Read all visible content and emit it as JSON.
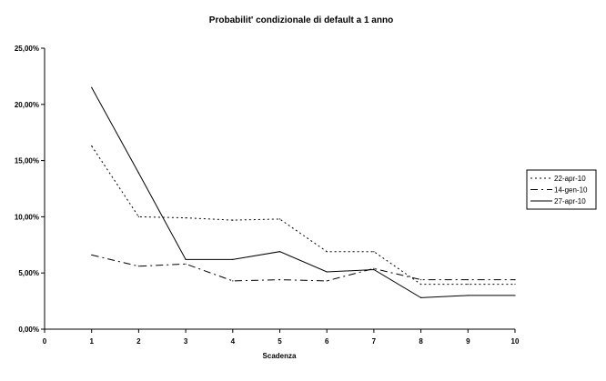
{
  "chart_data": {
    "type": "line",
    "title": "Probabilit' condizionale di default a 1 anno",
    "xlabel": "Scadenza",
    "ylabel": "",
    "xlim": [
      0,
      10
    ],
    "ylim": [
      0,
      25
    ],
    "x_ticks": [
      "0",
      "1",
      "2",
      "3",
      "4",
      "5",
      "6",
      "7",
      "8",
      "9",
      "10"
    ],
    "y_ticks": [
      "0,00%",
      "5,00%",
      "10,00%",
      "15,00%",
      "20,00%",
      "25,00%"
    ],
    "grid": false,
    "legend_position": "right",
    "series": [
      {
        "name": "22-apr-10",
        "style": "dotted",
        "x": [
          1,
          2,
          3,
          4,
          5,
          6,
          7,
          8,
          9,
          10
        ],
        "values": [
          16.3,
          10.0,
          9.9,
          9.7,
          9.8,
          6.9,
          6.9,
          4.0,
          4.0,
          4.0
        ]
      },
      {
        "name": "14-gen-10",
        "style": "dashdot",
        "x": [
          1,
          2,
          3,
          4,
          5,
          6,
          7,
          8,
          9,
          10
        ],
        "values": [
          6.6,
          5.6,
          5.8,
          4.3,
          4.4,
          4.3,
          5.4,
          4.4,
          4.4,
          4.4
        ]
      },
      {
        "name": "27-apr-10",
        "style": "solid",
        "x": [
          1,
          2,
          3,
          4,
          5,
          6,
          7,
          8,
          9,
          10
        ],
        "values": [
          21.5,
          13.9,
          6.2,
          6.2,
          6.9,
          5.1,
          5.3,
          2.8,
          3.0,
          3.0
        ]
      }
    ]
  }
}
